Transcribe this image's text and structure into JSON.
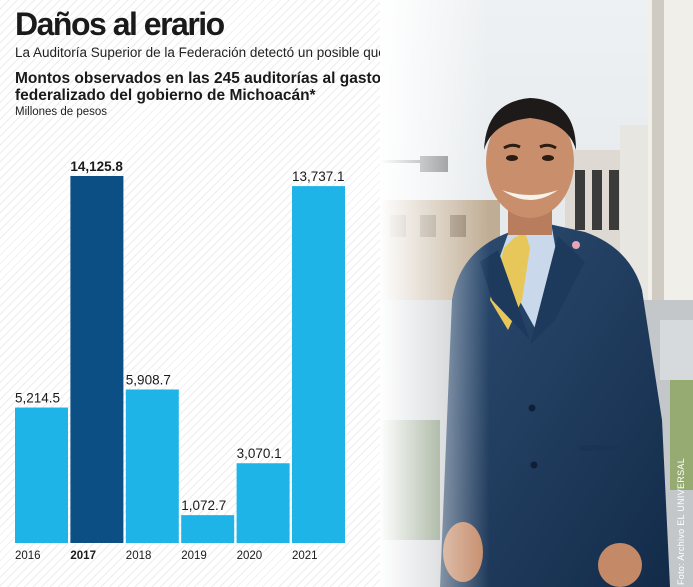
{
  "header": {
    "title": "Daños al erario",
    "subtitle": "La Auditoría Superior de la Federación detectó un posible quebranto a la Hacienda pública."
  },
  "chart_data": {
    "type": "bar",
    "title": "Montos observados en las 245 auditorías al gasto federalizado del gobierno de Michoacán*",
    "ylabel": "Millones de pesos",
    "xlabel": "",
    "categories": [
      "2016",
      "2017",
      "2018",
      "2019",
      "2020",
      "2021"
    ],
    "values": [
      5214.5,
      14125.8,
      5908.7,
      1072.7,
      3070.1,
      13737.1
    ],
    "labels": [
      "5,214.5",
      "14,125.8",
      "5,908.7",
      "1,072.7",
      "3,070.1",
      "13,737.1"
    ],
    "highlight": "2017",
    "ylim": [
      0,
      14125.8
    ],
    "grid": false,
    "colors": {
      "bar": "#1fb4e8",
      "highlight": "#0b4f84"
    }
  },
  "photo": {
    "credit": "Foto: Archivo EL UNIVERSAL"
  }
}
